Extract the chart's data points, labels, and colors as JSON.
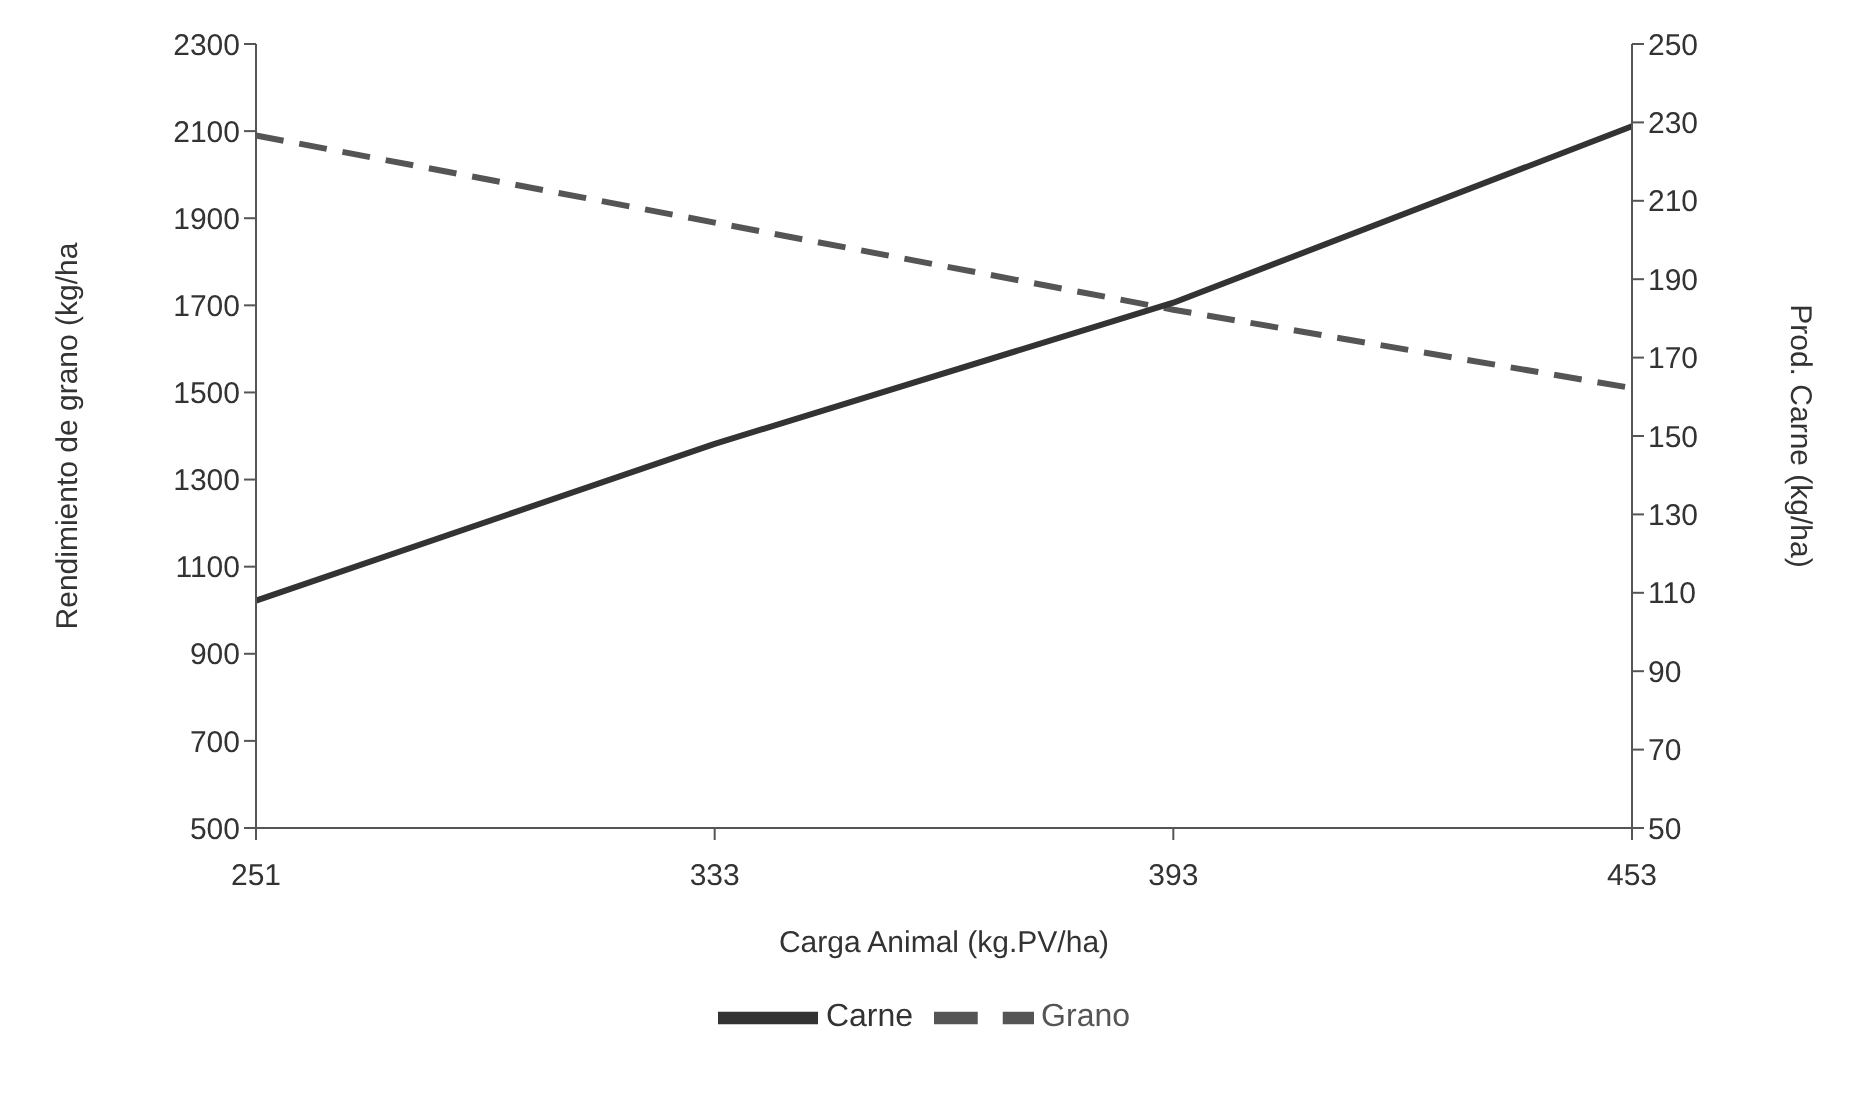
{
  "chart_data": {
    "type": "line",
    "xlabel": "Carga Animal (kg.PV/ha)",
    "ylabel": "Rendimiento de grano (kg/ha",
    "y2label": "Prod. Carne (kg/ha)",
    "categories": [
      "251",
      "333",
      "393",
      "453"
    ],
    "series": [
      {
        "name": "Grano",
        "color": "#555555",
        "values": [
          2090,
          1890,
          1690,
          1510
        ],
        "line_style": "dashed"
      },
      {
        "name": "Carne",
        "color": "#333333",
        "values": [
          108,
          148,
          184,
          229
        ],
        "axis": "y2",
        "line_style": "solid"
      }
    ],
    "ylim": [
      500,
      2300
    ],
    "yticks": [
      500,
      700,
      900,
      1100,
      1300,
      1500,
      1700,
      1900,
      2100,
      2300
    ],
    "y2lim": [
      50,
      250
    ],
    "y2ticks": [
      50,
      70,
      90,
      110,
      130,
      150,
      170,
      190,
      210,
      230,
      250
    ],
    "grid": false,
    "legend": "bottom",
    "marker": "none"
  }
}
